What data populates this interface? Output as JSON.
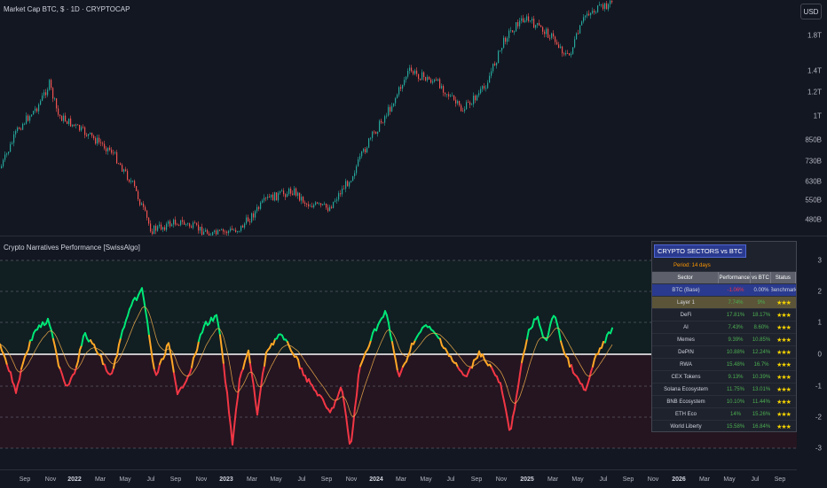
{
  "top_chart": {
    "title": "Market Cap BTC, $ · 1D · CRYPTOCAP",
    "currency_button": "USD",
    "y_ticks": [
      "1.8T",
      "1.4T",
      "1.2T",
      "1T",
      "850B",
      "730B",
      "630B",
      "550B",
      "480B"
    ]
  },
  "indicator": {
    "title": "Crypto Narratives Performance [SwissAlgo]",
    "y_ticks": [
      "3",
      "2",
      "1",
      "0",
      "-1",
      "-2",
      "-3"
    ]
  },
  "x_axis": {
    "labels": [
      {
        "text": "Sep",
        "year": false
      },
      {
        "text": "Nov",
        "year": false
      },
      {
        "text": "2022",
        "year": true
      },
      {
        "text": "Mar",
        "year": false
      },
      {
        "text": "May",
        "year": false
      },
      {
        "text": "Jul",
        "year": false
      },
      {
        "text": "Sep",
        "year": false
      },
      {
        "text": "Nov",
        "year": false
      },
      {
        "text": "2023",
        "year": true
      },
      {
        "text": "Mar",
        "year": false
      },
      {
        "text": "May",
        "year": false
      },
      {
        "text": "Jul",
        "year": false
      },
      {
        "text": "Sep",
        "year": false
      },
      {
        "text": "Nov",
        "year": false
      },
      {
        "text": "2024",
        "year": true
      },
      {
        "text": "Mar",
        "year": false
      },
      {
        "text": "May",
        "year": false
      },
      {
        "text": "Jul",
        "year": false
      },
      {
        "text": "Sep",
        "year": false
      },
      {
        "text": "Nov",
        "year": false
      },
      {
        "text": "2025",
        "year": true
      },
      {
        "text": "Mar",
        "year": false
      },
      {
        "text": "May",
        "year": false
      },
      {
        "text": "Jul",
        "year": false
      },
      {
        "text": "Sep",
        "year": false
      },
      {
        "text": "Nov",
        "year": false
      },
      {
        "text": "2026",
        "year": true
      },
      {
        "text": "Mar",
        "year": false
      },
      {
        "text": "May",
        "year": false
      },
      {
        "text": "Jul",
        "year": false
      },
      {
        "text": "Sep",
        "year": false
      }
    ]
  },
  "colors": {
    "up": "#26a69a",
    "down": "#ef5350",
    "strong": "#00e676",
    "weak": "#f23645",
    "neutral": "#ffa726",
    "zero_line": "#ffffff",
    "panel_header": "#2a3a8f"
  },
  "panel": {
    "title": "CRYPTO SECTORS vs BTC",
    "period": "Period: 14 days",
    "headers": [
      "Sector",
      "Performance",
      "vs BTC",
      "Status"
    ],
    "rows": [
      {
        "sector": "BTC (Base)",
        "performance": "-1.06%",
        "vs_btc": "0.00%",
        "status": "Benchmark",
        "perf_tone": "neg",
        "vs_tone": "wht",
        "kind": "btc"
      },
      {
        "sector": "Layer 1",
        "performance": "7.74%",
        "vs_btc": "9%",
        "status": "★★★",
        "perf_tone": "pos",
        "vs_tone": "pos",
        "kind": "l1"
      },
      {
        "sector": "DeFi",
        "performance": "17.81%",
        "vs_btc": "18.17%",
        "status": "★★★",
        "perf_tone": "pos",
        "vs_tone": "pos",
        "kind": "normal"
      },
      {
        "sector": "AI",
        "performance": "7.43%",
        "vs_btc": "8.60%",
        "status": "★★★",
        "perf_tone": "pos",
        "vs_tone": "pos",
        "kind": "normal"
      },
      {
        "sector": "Memes",
        "performance": "9.39%",
        "vs_btc": "10.85%",
        "status": "★★★",
        "perf_tone": "pos",
        "vs_tone": "pos",
        "kind": "normal"
      },
      {
        "sector": "DePIN",
        "performance": "10.88%",
        "vs_btc": "12.24%",
        "status": "★★★",
        "perf_tone": "pos",
        "vs_tone": "pos",
        "kind": "normal"
      },
      {
        "sector": "RWA",
        "performance": "15.48%",
        "vs_btc": "16.7%",
        "status": "★★★",
        "perf_tone": "pos",
        "vs_tone": "pos",
        "kind": "normal"
      },
      {
        "sector": "CEX Tokens",
        "performance": "9.13%",
        "vs_btc": "10.39%",
        "status": "★★★",
        "perf_tone": "pos",
        "vs_tone": "pos",
        "kind": "normal"
      },
      {
        "sector": "Solana Ecosystem",
        "performance": "11.75%",
        "vs_btc": "13.01%",
        "status": "★★★",
        "perf_tone": "pos",
        "vs_tone": "pos",
        "kind": "normal"
      },
      {
        "sector": "BNB Ecosystem",
        "performance": "10.10%",
        "vs_btc": "11.44%",
        "status": "★★★",
        "perf_tone": "pos",
        "vs_tone": "pos",
        "kind": "normal"
      },
      {
        "sector": "ETH Eco",
        "performance": "14%",
        "vs_btc": "15.26%",
        "status": "★★★",
        "perf_tone": "pos",
        "vs_tone": "pos",
        "kind": "normal"
      },
      {
        "sector": "World Liberty",
        "performance": "15.58%",
        "vs_btc": "16.84%",
        "status": "★★★",
        "perf_tone": "pos",
        "vs_tone": "pos",
        "kind": "normal"
      }
    ]
  }
}
